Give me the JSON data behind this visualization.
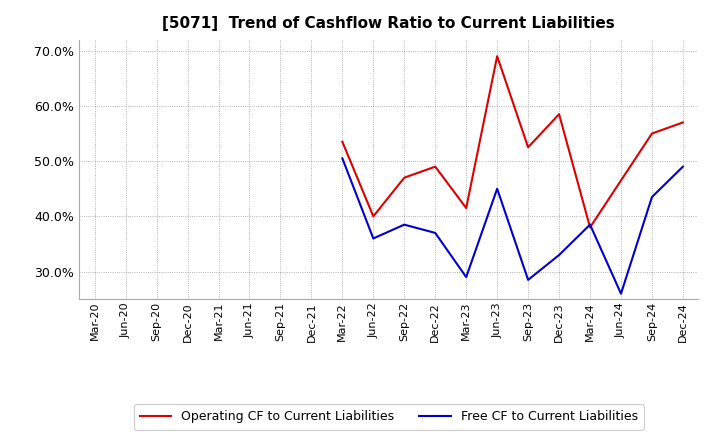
{
  "title": "[5071]  Trend of Cashflow Ratio to Current Liabilities",
  "x_labels": [
    "Mar-20",
    "Jun-20",
    "Sep-20",
    "Dec-20",
    "Mar-21",
    "Jun-21",
    "Sep-21",
    "Dec-21",
    "Mar-22",
    "Jun-22",
    "Sep-22",
    "Dec-22",
    "Mar-23",
    "Jun-23",
    "Sep-23",
    "Dec-23",
    "Mar-24",
    "Jun-24",
    "Sep-24",
    "Dec-24"
  ],
  "operating_cf": [
    null,
    null,
    null,
    null,
    null,
    null,
    null,
    null,
    53.5,
    40.0,
    47.0,
    49.0,
    41.5,
    69.0,
    52.5,
    58.5,
    38.0,
    null,
    55.0,
    57.0
  ],
  "free_cf": [
    null,
    null,
    null,
    null,
    null,
    null,
    null,
    null,
    50.5,
    36.0,
    38.5,
    37.0,
    29.0,
    45.0,
    28.5,
    33.0,
    38.5,
    26.0,
    43.5,
    49.0
  ],
  "ylim": [
    25.0,
    72.0
  ],
  "yticks": [
    30.0,
    40.0,
    50.0,
    60.0,
    70.0
  ],
  "operating_color": "#dd0000",
  "free_color": "#0000cc",
  "bg_color": "#ffffff",
  "plot_bg_color": "#ffffff",
  "grid_color": "#999999",
  "legend_op": "Operating CF to Current Liabilities",
  "legend_free": "Free CF to Current Liabilities"
}
